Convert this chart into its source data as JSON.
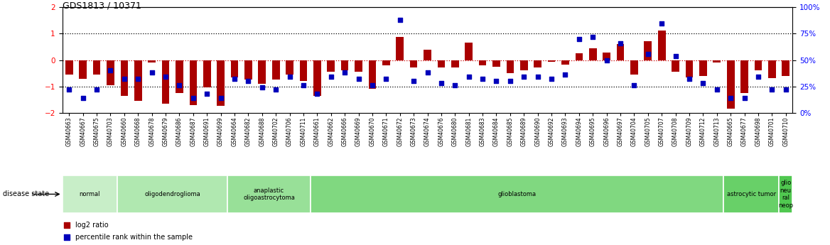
{
  "title": "GDS1813 / 10371",
  "samples": [
    "GSM40663",
    "GSM40667",
    "GSM40675",
    "GSM40703",
    "GSM40660",
    "GSM40668",
    "GSM40678",
    "GSM40679",
    "GSM40686",
    "GSM40687",
    "GSM40691",
    "GSM40699",
    "GSM40664",
    "GSM40682",
    "GSM40688",
    "GSM40702",
    "GSM40706",
    "GSM40711",
    "GSM40661",
    "GSM40662",
    "GSM40666",
    "GSM40669",
    "GSM40670",
    "GSM40671",
    "GSM40672",
    "GSM40673",
    "GSM40674",
    "GSM40676",
    "GSM40680",
    "GSM40681",
    "GSM40683",
    "GSM40684",
    "GSM40685",
    "GSM40689",
    "GSM40690",
    "GSM40692",
    "GSM40693",
    "GSM40694",
    "GSM40695",
    "GSM40696",
    "GSM40697",
    "GSM40704",
    "GSM40705",
    "GSM40707",
    "GSM40708",
    "GSM40709",
    "GSM40712",
    "GSM40713",
    "GSM40665",
    "GSM40677",
    "GSM40698",
    "GSM40701",
    "GSM40710"
  ],
  "log2_ratio": [
    -0.55,
    -0.72,
    -0.55,
    -0.95,
    -1.35,
    -1.55,
    -0.1,
    -1.65,
    -1.25,
    -1.7,
    -1.05,
    -1.75,
    -0.65,
    -0.75,
    -0.9,
    -0.75,
    -0.55,
    -0.8,
    -1.35,
    -0.45,
    -0.38,
    -0.45,
    -1.1,
    -0.2,
    0.88,
    -0.28,
    0.4,
    -0.28,
    -0.28,
    0.65,
    -0.2,
    -0.25,
    -0.5,
    -0.38,
    -0.28,
    -0.08,
    -0.18,
    0.25,
    0.45,
    0.28,
    0.62,
    -0.55,
    0.72,
    1.12,
    -0.45,
    -0.65,
    -0.6,
    -0.1,
    -1.85,
    -1.25,
    -0.38,
    -0.7,
    -0.6
  ],
  "percentile_rank": [
    22,
    14,
    22,
    40,
    32,
    32,
    38,
    34,
    26,
    14,
    18,
    14,
    32,
    30,
    24,
    22,
    34,
    26,
    18,
    34,
    38,
    32,
    26,
    32,
    88,
    30,
    38,
    28,
    26,
    34,
    32,
    30,
    30,
    34,
    34,
    32,
    36,
    70,
    72,
    50,
    66,
    26,
    56,
    85,
    54,
    32,
    28,
    22,
    14,
    14,
    34,
    22,
    22
  ],
  "disease_groups": [
    {
      "label": "normal",
      "start": 0,
      "end": 4,
      "color": "#c8eec8"
    },
    {
      "label": "oligodendroglioma",
      "start": 4,
      "end": 12,
      "color": "#b0e8b0"
    },
    {
      "label": "anaplastic\noligoastrocytoma",
      "start": 12,
      "end": 18,
      "color": "#98e098"
    },
    {
      "label": "glioblastoma",
      "start": 18,
      "end": 48,
      "color": "#80d880"
    },
    {
      "label": "astrocytic tumor",
      "start": 48,
      "end": 52,
      "color": "#68d068"
    },
    {
      "label": "glio\nneu\nral\nneop",
      "start": 52,
      "end": 53,
      "color": "#50c850"
    }
  ],
  "bar_color": "#aa0000",
  "dot_color": "#0000bb",
  "ylim_left": [
    -2.0,
    2.0
  ],
  "ylim_right": [
    0,
    100
  ],
  "yticks_left": [
    -2,
    -1,
    0,
    1,
    2
  ],
  "yticks_right": [
    0,
    25,
    50,
    75,
    100
  ],
  "hlines": [
    {
      "y": -1,
      "color": "black",
      "ls": "dotted",
      "lw": 0.9
    },
    {
      "y": 0,
      "color": "#cc0000",
      "ls": "dotted",
      "lw": 0.9
    },
    {
      "y": 1,
      "color": "black",
      "ls": "dotted",
      "lw": 0.9
    }
  ],
  "legend_items": [
    {
      "label": "log2 ratio",
      "color": "#aa0000"
    },
    {
      "label": "percentile rank within the sample",
      "color": "#0000bb"
    }
  ]
}
